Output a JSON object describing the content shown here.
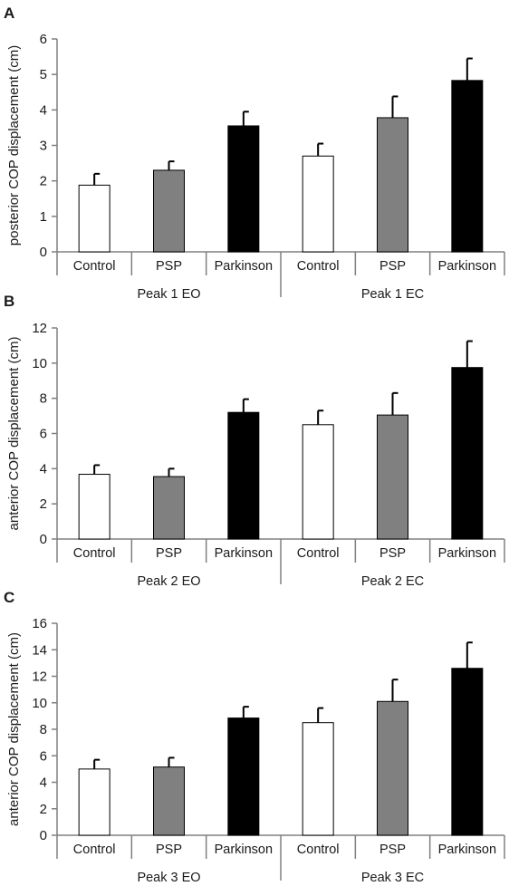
{
  "colors": {
    "control": "#ffffff",
    "psp": "#808080",
    "parkinson": "#000000",
    "axis": "#808080",
    "bar_edge": "#000000"
  },
  "chart_data": [
    {
      "type": "bar",
      "panel_letter": "A",
      "ylabel": "posterior COP displacement (cm)",
      "ylim": [
        0,
        6
      ],
      "yticks": [
        0,
        1,
        2,
        3,
        4,
        5,
        6
      ],
      "categories": [
        "Control",
        "PSP",
        "Parkinson",
        "Control",
        "PSP",
        "Parkinson"
      ],
      "groups": [
        "Peak 1 EO",
        "Peak 1 EC"
      ],
      "values": [
        1.88,
        2.3,
        3.55,
        2.7,
        3.78,
        4.83
      ],
      "errors": [
        0.32,
        0.25,
        0.4,
        0.35,
        0.6,
        0.62
      ],
      "fills": [
        "control",
        "psp",
        "parkinson",
        "control",
        "psp",
        "parkinson"
      ],
      "grid": false
    },
    {
      "type": "bar",
      "panel_letter": "B",
      "ylabel": "anterior COP displacement (cm)",
      "ylim": [
        0,
        12
      ],
      "yticks": [
        0,
        2,
        4,
        6,
        8,
        10,
        12
      ],
      "categories": [
        "Control",
        "PSP",
        "Parkinson",
        "Control",
        "PSP",
        "Parkinson"
      ],
      "groups": [
        "Peak 2 EO",
        "Peak 2 EC"
      ],
      "values": [
        3.68,
        3.55,
        7.2,
        6.5,
        7.05,
        9.75
      ],
      "errors": [
        0.52,
        0.45,
        0.75,
        0.8,
        1.25,
        1.5
      ],
      "fills": [
        "control",
        "psp",
        "parkinson",
        "control",
        "psp",
        "parkinson"
      ],
      "grid": false
    },
    {
      "type": "bar",
      "panel_letter": "C",
      "ylabel": "anterior COP displacement (cm)",
      "ylim": [
        0,
        16
      ],
      "yticks": [
        0,
        2,
        4,
        6,
        8,
        10,
        12,
        14,
        16
      ],
      "categories": [
        "Control",
        "PSP",
        "Parkinson",
        "Control",
        "PSP",
        "Parkinson"
      ],
      "groups": [
        "Peak 3 EO",
        "Peak 3 EC"
      ],
      "values": [
        5.0,
        5.15,
        8.85,
        8.5,
        10.1,
        12.6
      ],
      "errors": [
        0.7,
        0.7,
        0.85,
        1.1,
        1.65,
        1.95
      ],
      "fills": [
        "control",
        "psp",
        "parkinson",
        "control",
        "psp",
        "parkinson"
      ],
      "grid": false
    }
  ]
}
